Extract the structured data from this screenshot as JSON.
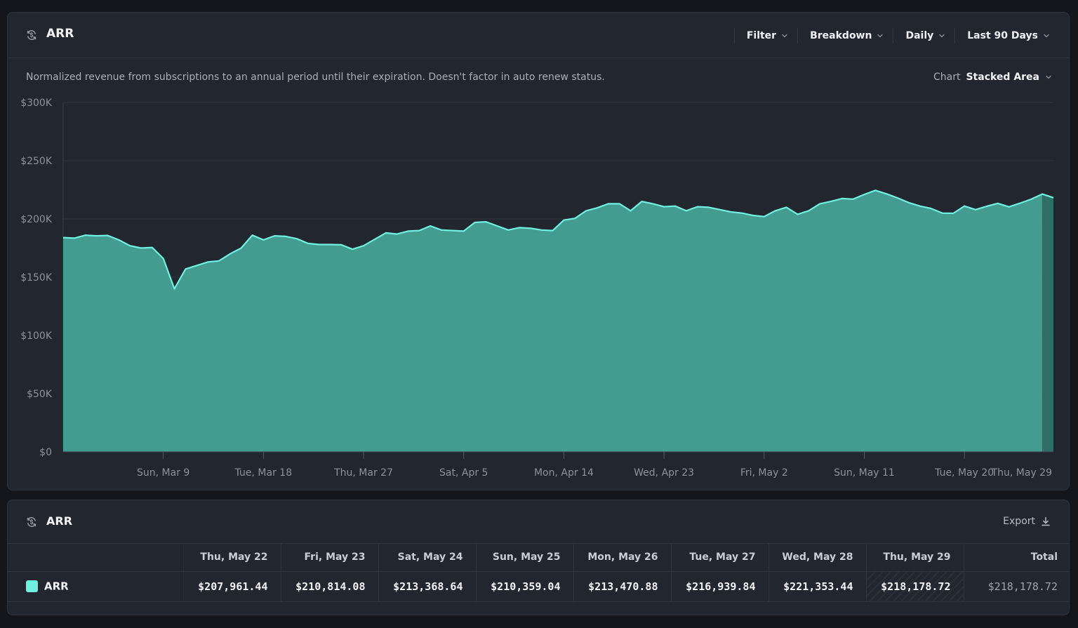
{
  "chart_panel": {
    "title": "ARR",
    "icon": "refresh-dollar-icon",
    "controls": [
      {
        "label": "Filter",
        "icon": "chevron-down-icon"
      },
      {
        "label": "Breakdown",
        "icon": "chevron-down-icon"
      },
      {
        "label": "Daily",
        "icon": "chevron-down-icon"
      },
      {
        "label": "Last 90 Days",
        "icon": "chevron-down-icon"
      }
    ],
    "description": "Normalized revenue from subscriptions to an annual period until their expiration. Doesn't factor in auto renew status.",
    "chart_type_label": "Chart",
    "chart_type_value": "Stacked Area"
  },
  "chart_data": {
    "type": "area",
    "stacked": true,
    "series": [
      {
        "name": "ARR",
        "color": "#6ff0e0",
        "fill": "#449b8f",
        "values": [
          184000,
          183500,
          186000,
          185500,
          185800,
          182000,
          177000,
          175000,
          175500,
          166000,
          140000,
          157000,
          160000,
          163000,
          164000,
          170000,
          175000,
          186000,
          182000,
          185500,
          185000,
          183000,
          179000,
          178000,
          178000,
          177800,
          174000,
          177000,
          182500,
          188000,
          187000,
          189500,
          190000,
          194000,
          190500,
          190000,
          189500,
          197000,
          197500,
          194000,
          190500,
          192500,
          192000,
          190500,
          190000,
          199000,
          200500,
          207000,
          209500,
          213000,
          213000,
          207000,
          215000,
          213000,
          210500,
          211000,
          207000,
          210500,
          210000,
          208000,
          206000,
          205000,
          203000,
          202000,
          207000,
          210000,
          204000,
          207000,
          213000,
          215000,
          217500,
          217000,
          221000,
          224500,
          221500,
          218000,
          214000,
          211000,
          209000,
          205000,
          204800,
          211000,
          207961.44,
          210814.08,
          213368.64,
          210359.04,
          213470.88,
          216939.84,
          221353.44,
          218178.72
        ]
      }
    ],
    "x_ticks": [
      "Sun, Mar 9",
      "Tue, Mar 18",
      "Thu, Mar 27",
      "Sat, Apr 5",
      "Mon, Apr 14",
      "Wed, Apr 23",
      "Fri, May 2",
      "Sun, May 11",
      "Tue, May 20",
      "Thu, May 29"
    ],
    "y_ticks": [
      "$0",
      "$50K",
      "$100K",
      "$150K",
      "$200K",
      "$250K",
      "$300K"
    ],
    "ylim": [
      0,
      300000
    ],
    "partial_last_period": true,
    "grid": true
  },
  "table_panel": {
    "title": "ARR",
    "icon": "refresh-dollar-icon",
    "export_label": "Export",
    "export_icon": "download-icon",
    "columns": [
      "Thu, May 22",
      "Fri, May 23",
      "Sat, May 24",
      "Sun, May 25",
      "Mon, May 26",
      "Tue, May 27",
      "Wed, May 28",
      "Thu, May 29"
    ],
    "total_label": "Total",
    "rows": [
      {
        "name": "ARR",
        "swatch": "#6ff0e0",
        "values": [
          "$207,961.44",
          "$210,814.08",
          "$213,368.64",
          "$210,359.04",
          "$213,470.88",
          "$216,939.84",
          "$221,353.44",
          "$218,178.72"
        ],
        "total": "$218,178.72"
      }
    ]
  }
}
